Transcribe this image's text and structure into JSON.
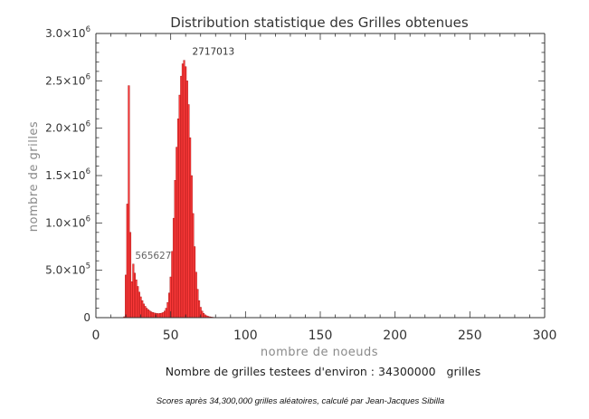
{
  "chart_data": {
    "type": "bar",
    "title": "Distribution statistique des Grilles obtenues",
    "xlabel": "nombre de noeuds",
    "ylabel": "nombre de grilles",
    "xlim": [
      0,
      300
    ],
    "ylim": [
      0,
      3000000
    ],
    "x_ticks": [
      0,
      50,
      100,
      150,
      200,
      250,
      300
    ],
    "x_tick_labels": [
      "0",
      "50",
      "100",
      "150",
      "200",
      "250",
      "300"
    ],
    "y_ticks": [
      0,
      500000,
      1000000,
      1500000,
      2000000,
      2500000,
      3000000
    ],
    "y_tick_mantissas": [
      "0",
      "5.0×10",
      "1.0×10",
      "1.5×10",
      "2.0×10",
      "2.5×10",
      "3.0×10"
    ],
    "y_tick_exponents": [
      "",
      "5",
      "6",
      "6",
      "6",
      "6",
      "6"
    ],
    "grid": false,
    "bar_color": "#ff3b3b",
    "bar_edge_color": "#a01010",
    "annotations": [
      {
        "text": "2717013",
        "x": 65,
        "y": 2717013
      },
      {
        "text": "565627",
        "x": 25,
        "y": 565627
      }
    ],
    "series": [
      {
        "x": [
          19,
          20,
          21,
          22,
          23,
          24,
          25,
          26,
          27,
          28,
          29,
          30,
          31,
          32,
          33,
          34,
          35,
          36,
          37,
          38,
          39,
          40,
          41,
          42,
          43,
          44,
          45,
          46,
          47,
          48,
          49,
          50,
          51,
          52,
          53,
          54,
          55,
          56,
          57,
          58,
          59,
          60,
          61,
          62,
          63,
          64,
          65,
          66,
          67,
          68,
          69,
          70,
          71,
          72,
          73,
          74,
          75,
          76,
          77,
          78,
          79,
          80,
          81,
          82,
          83,
          84,
          85,
          86,
          87,
          88,
          89,
          90,
          91,
          92,
          93,
          94,
          95
        ],
        "values": [
          10000,
          450000,
          1200000,
          2450000,
          900000,
          380000,
          565627,
          470000,
          400000,
          330000,
          270000,
          220000,
          180000,
          145000,
          120000,
          100000,
          85000,
          72000,
          62000,
          55000,
          50000,
          47000,
          44000,
          43000,
          45000,
          48000,
          55000,
          70000,
          100000,
          160000,
          260000,
          430000,
          700000,
          1050000,
          1450000,
          1800000,
          2100000,
          2350000,
          2550000,
          2680000,
          2717013,
          2650000,
          2500000,
          2250000,
          1900000,
          1500000,
          1100000,
          750000,
          480000,
          300000,
          180000,
          110000,
          70000,
          45000,
          30000,
          20000,
          14000,
          10000,
          7000,
          5000,
          3500,
          2500,
          1800,
          1200,
          800,
          500,
          300,
          200,
          100,
          50,
          30,
          20,
          12,
          8,
          5,
          3,
          2
        ]
      }
    ],
    "footer": "Nombre de grilles testees d'environ : 34300000   grilles",
    "caption": "Scores après 34,300,000 grilles aléatoires, calculé par Jean-Jacques Sibilla"
  }
}
